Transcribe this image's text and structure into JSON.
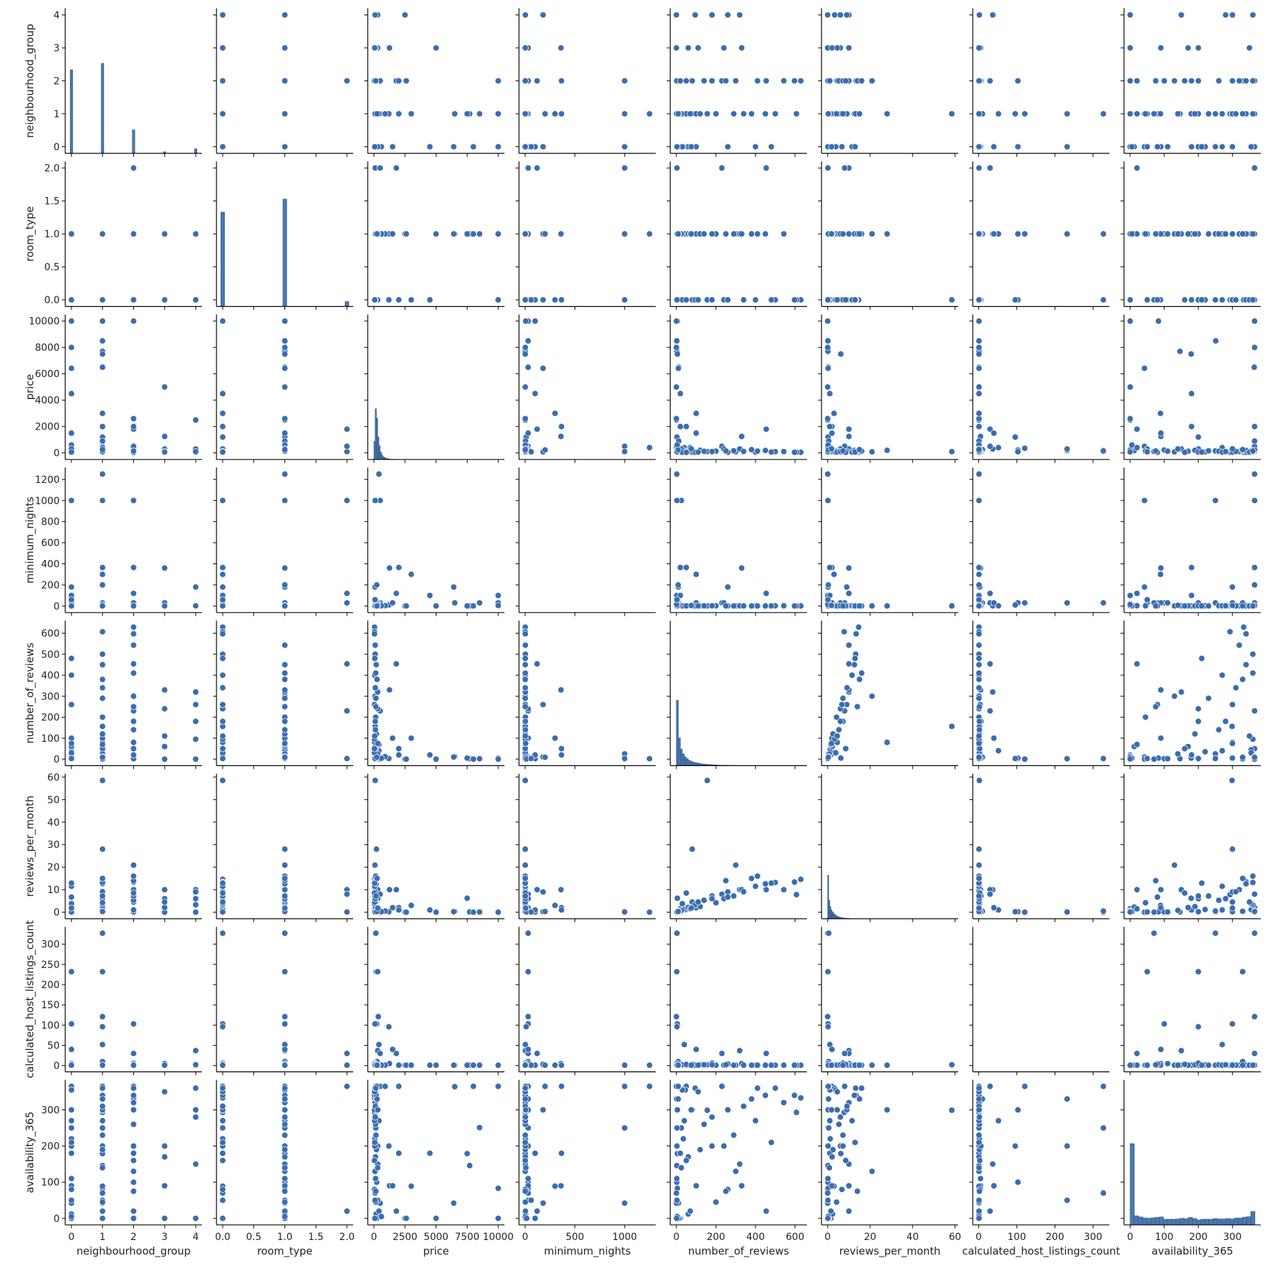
{
  "chart_data": {
    "type": "scatter",
    "kind": "pairplot",
    "title": "",
    "colors": {
      "point": "#3a6db0",
      "point_edge": "#ffffff",
      "bar": "#4c78b0",
      "bar_edge": "#2b4f80",
      "axis": "#000000"
    },
    "variables": [
      {
        "name": "neighbourhood_group",
        "range": [
          -0.2,
          4.2
        ],
        "x_ticks": [
          "0",
          "1",
          "2",
          "3",
          "4"
        ],
        "y_ticks": [
          "0",
          "1",
          "2",
          "3",
          "4"
        ]
      },
      {
        "name": "room_type",
        "range": [
          -0.1,
          2.1
        ],
        "x_ticks": [
          "0.0",
          "0.5",
          "1.0",
          "1.5",
          "2.0"
        ],
        "y_ticks": [
          "0.0",
          "0.5",
          "1.0",
          "1.5",
          "2.0"
        ]
      },
      {
        "name": "price",
        "range": [
          -500,
          10500
        ],
        "x_ticks": [
          "0",
          "2500",
          "5000",
          "7500",
          "10000"
        ],
        "y_ticks": [
          "0",
          "2000",
          "4000",
          "6000",
          "8000",
          "10000"
        ]
      },
      {
        "name": "minimum_nights",
        "range": [
          -62,
          1312
        ],
        "x_ticks": [
          "0",
          "500",
          "1000"
        ],
        "y_ticks": [
          "0",
          "200",
          "400",
          "600",
          "800",
          "1000",
          "1200"
        ]
      },
      {
        "name": "number_of_reviews",
        "range": [
          -31,
          660
        ],
        "x_ticks": [
          "0",
          "200",
          "400",
          "600"
        ],
        "y_ticks": [
          "0",
          "100",
          "200",
          "300",
          "400",
          "500",
          "600"
        ]
      },
      {
        "name": "reviews_per_month",
        "range": [
          -2.9,
          61.5
        ],
        "x_ticks": [
          "0",
          "20",
          "40",
          "60"
        ],
        "y_ticks": [
          "0",
          "10",
          "20",
          "30",
          "40",
          "50",
          "60"
        ]
      },
      {
        "name": "calculated_host_listings_count",
        "range": [
          -15.3,
          343
        ],
        "x_ticks": [
          "0",
          "100",
          "200",
          "300"
        ],
        "y_ticks": [
          "0",
          "50",
          "100",
          "150",
          "200",
          "250",
          "300"
        ]
      },
      {
        "name": "availability_365",
        "range": [
          -18,
          383
        ],
        "x_ticks": [
          "0",
          "100",
          "200",
          "300"
        ],
        "y_ticks": [
          "0",
          "100",
          "200",
          "300"
        ]
      }
    ],
    "histograms": {
      "neighbourhood_group": {
        "start": -0.04,
        "width": 0.08,
        "centers": [
          0,
          1,
          2,
          3,
          4
        ],
        "counts": [
          20104,
          21661,
          5666,
          373,
          1091
        ]
      },
      "room_type": {
        "start": -0.03,
        "width": 0.06,
        "centers": [
          0,
          1,
          2
        ],
        "counts": [
          22326,
          25409,
          1160
        ]
      },
      "price": {
        "start": 0,
        "width": 100,
        "counts": [
          5200,
          14500,
          11800,
          6400,
          3900,
          2100,
          1300,
          800,
          600,
          350,
          300,
          180,
          120,
          90,
          70,
          60,
          40,
          30,
          25,
          20
        ]
      },
      "number_of_reviews": {
        "start": 0,
        "width": 10,
        "counts": [
          17000,
          7200,
          4300,
          3100,
          2300,
          1800,
          1400,
          1150,
          950,
          800,
          700,
          600,
          500,
          430,
          380,
          330,
          290,
          250,
          220,
          190,
          160,
          140,
          120,
          100,
          90,
          80,
          70,
          60,
          50,
          40
        ]
      },
      "reviews_per_month": {
        "start": 0,
        "width": 0.5,
        "counts": [
          19500,
          8200,
          5400,
          4000,
          3100,
          2500,
          2000,
          1600,
          1300,
          1000,
          800,
          650,
          520,
          420,
          350,
          290,
          240,
          200,
          160,
          130,
          100,
          80,
          60,
          50,
          40,
          30,
          20,
          15,
          10,
          8
        ]
      },
      "availability_365": {
        "start": 0,
        "width": 12.2,
        "counts": [
          17941,
          2000,
          1750,
          1550,
          1450,
          1550,
          1650,
          1750,
          1250,
          1250,
          1250,
          1300,
          1450,
          1350,
          1650,
          1400,
          1100,
          1250,
          1250,
          1250,
          1400,
          1300,
          1300,
          1400,
          1300,
          1500,
          1500,
          1700,
          1800,
          2950
        ]
      }
    },
    "columns_order": [
      "neighbourhood_group",
      "room_type",
      "price",
      "minimum_nights",
      "number_of_reviews",
      "reviews_per_month",
      "calculated_host_listings_count",
      "availability_365"
    ],
    "rows": [
      [
        0,
        0,
        10000,
        100,
        2,
        0.04,
        1,
        0
      ],
      [
        1,
        1,
        10000,
        30,
        5,
        0.16,
        1,
        83
      ],
      [
        2,
        0,
        10000,
        5,
        0,
        0,
        1,
        365
      ],
      [
        1,
        1,
        8500,
        30,
        2,
        0.1,
        1,
        251
      ],
      [
        1,
        1,
        7703,
        1,
        2,
        0.1,
        1,
        146
      ],
      [
        0,
        1,
        8000,
        1,
        0,
        0,
        1,
        365
      ],
      [
        1,
        1,
        6500,
        30,
        12,
        0.3,
        1,
        364
      ],
      [
        0,
        1,
        6419,
        180,
        10,
        0.2,
        1,
        42
      ],
      [
        1,
        1,
        7500,
        1,
        5,
        6.2,
        1,
        179
      ],
      [
        3,
        1,
        5000,
        1,
        0,
        0,
        1,
        0
      ],
      [
        4,
        1,
        2500,
        1,
        0,
        0,
        1,
        0
      ],
      [
        2,
        1,
        2600,
        1,
        0,
        0,
        1,
        0
      ],
      [
        1,
        1,
        400,
        1250,
        2,
        0.03,
        1,
        365
      ],
      [
        0,
        0,
        100,
        1000,
        25,
        0.4,
        1,
        250
      ],
      [
        1,
        1,
        500,
        1000,
        0,
        0,
        1,
        42
      ],
      [
        2,
        2,
        99,
        1000,
        3,
        0.1,
        1,
        365
      ],
      [
        2,
        0,
        47,
        1,
        629,
        14.6,
        1,
        333
      ],
      [
        1,
        0,
        49,
        1,
        607,
        7.8,
        1,
        293
      ],
      [
        2,
        0,
        46,
        1,
        597,
        13.4,
        1,
        340
      ],
      [
        2,
        1,
        100,
        2,
        543,
        10,
        1,
        320
      ],
      [
        1,
        0,
        100,
        1,
        156,
        58.5,
        2,
        299
      ],
      [
        1,
        1,
        200,
        1,
        80,
        28,
        1,
        300
      ],
      [
        2,
        1,
        80,
        1,
        300,
        20.9,
        1,
        130
      ],
      [
        1,
        1,
        200,
        30,
        1,
        0.1,
        327,
        365
      ],
      [
        1,
        0,
        100,
        30,
        0,
        0,
        327,
        70
      ],
      [
        1,
        1,
        150,
        30,
        3,
        0.5,
        327,
        250
      ],
      [
        0,
        1,
        150,
        30,
        0,
        0,
        232,
        200
      ],
      [
        1,
        1,
        200,
        30,
        1,
        0.3,
        232,
        330
      ],
      [
        1,
        1,
        300,
        30,
        2,
        0.1,
        232,
        50
      ],
      [
        1,
        1,
        350,
        30,
        0,
        0,
        121,
        365
      ],
      [
        2,
        1,
        220,
        30,
        2,
        0.1,
        103,
        100
      ],
      [
        0,
        0,
        90,
        30,
        5,
        0.2,
        103,
        300
      ],
      [
        1,
        0,
        1200,
        10,
        3,
        0.2,
        96,
        200
      ],
      [
        1,
        1,
        400,
        2,
        40,
        1,
        52,
        270
      ],
      [
        4,
        1,
        300,
        2,
        320,
        10,
        37,
        150
      ],
      [
        3,
        1,
        1250,
        360,
        330,
        10,
        5,
        90
      ],
      [
        4,
        0,
        80,
        180,
        260,
        9,
        3,
        300
      ],
      [
        2,
        2,
        1800,
        120,
        454,
        10,
        30,
        20
      ],
      [
        2,
        2,
        500,
        30,
        230,
        8,
        30,
        365
      ],
      [
        3,
        0,
        300,
        30,
        240,
        6,
        1,
        200
      ],
      [
        1,
        0,
        3000,
        300,
        100,
        3,
        1,
        89
      ],
      [
        0,
        0,
        4500,
        100,
        20,
        1,
        1,
        180
      ],
      [
        1,
        0,
        2000,
        365,
        50,
        2,
        1,
        365
      ],
      [
        2,
        0,
        2000,
        365,
        20,
        1,
        1,
        180
      ],
      [
        0,
        1,
        1500,
        30,
        100,
        2,
        40,
        90
      ],
      [
        0,
        0,
        60,
        2,
        20,
        1.5,
        1,
        0
      ],
      [
        0,
        1,
        150,
        3,
        45,
        1.1,
        1,
        355
      ],
      [
        1,
        1,
        200,
        1,
        120,
        2.5,
        2,
        190
      ],
      [
        1,
        0,
        90,
        1,
        15,
        0.6,
        1,
        0
      ],
      [
        2,
        0,
        50,
        1,
        80,
        4.5,
        3,
        300
      ],
      [
        1,
        1,
        250,
        30,
        9,
        0.4,
        10,
        330
      ],
      [
        0,
        1,
        175,
        4,
        60,
        2.3,
        1,
        12
      ],
      [
        1,
        1,
        135,
        2,
        200,
        4.2,
        1,
        45
      ],
      [
        0,
        0,
        70,
        3,
        35,
        1.2,
        2,
        220
      ],
      [
        2,
        1,
        120,
        2,
        140,
        5.3,
        2,
        260
      ],
      [
        4,
        0,
        45,
        1,
        95,
        3.3,
        1,
        360
      ],
      [
        3,
        1,
        125,
        2,
        60,
        2.1,
        1,
        170
      ],
      [
        1,
        0,
        80,
        5,
        5,
        0.2,
        1,
        0
      ],
      [
        0,
        0,
        45,
        1,
        260,
        6.7,
        4,
        80
      ],
      [
        1,
        1,
        300,
        7,
        25,
        0.8,
        1,
        140
      ],
      [
        0,
        1,
        220,
        3,
        10,
        0.3,
        1,
        0
      ],
      [
        1,
        0,
        110,
        1,
        340,
        9.1,
        1,
        310
      ],
      [
        2,
        0,
        65,
        2,
        180,
        7.2,
        6,
        200
      ],
      [
        0,
        0,
        55,
        2,
        400,
        11.5,
        1,
        270
      ],
      [
        1,
        1,
        185,
        1,
        450,
        12.6,
        1,
        340
      ],
      [
        0,
        1,
        130,
        30,
        2,
        0.1,
        5,
        110
      ],
      [
        1,
        1,
        400,
        3,
        70,
        1.5,
        1,
        20
      ],
      [
        2,
        1,
        150,
        1,
        250,
        14,
        2,
        75
      ],
      [
        0,
        0,
        40,
        1,
        30,
        3.8,
        2,
        355
      ],
      [
        1,
        1,
        900,
        4,
        12,
        0.5,
        1,
        365
      ],
      [
        0,
        1,
        600,
        2,
        4,
        0.2,
        1,
        5
      ],
      [
        1,
        0,
        75,
        15,
        1,
        0.1,
        1,
        0
      ],
      [
        3,
        0,
        60,
        1,
        110,
        4.5,
        1,
        350
      ],
      [
        4,
        1,
        100,
        2,
        180,
        6,
        2,
        280
      ],
      [
        2,
        0,
        40,
        1,
        50,
        8.5,
        3,
        160
      ],
      [
        1,
        1,
        160,
        1,
        290,
        7.2,
        1,
        230
      ],
      [
        0,
        0,
        85,
        60,
        3,
        0.1,
        1,
        50
      ],
      [
        1,
        1,
        225,
        200,
        9,
        0.3,
        1,
        365
      ],
      [
        0,
        1,
        310,
        5,
        75,
        1.8,
        1,
        300
      ],
      [
        1,
        0,
        95,
        2,
        500,
        13.2,
        1,
        360
      ],
      [
        0,
        0,
        65,
        1,
        480,
        12.9,
        1,
        210
      ],
      [
        2,
        1,
        140,
        1,
        410,
        16,
        1,
        360
      ],
      [
        1,
        1,
        250,
        1,
        380,
        15,
        1,
        330
      ]
    ]
  }
}
